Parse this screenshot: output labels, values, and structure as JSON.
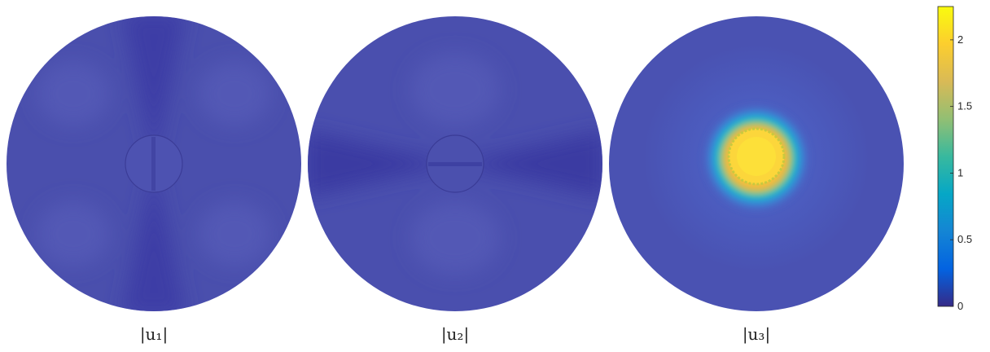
{
  "chart_data": {
    "type": "heatmap",
    "panels": [
      {
        "label": "|u₁|",
        "pattern": "vertical-lobes",
        "max_value": 0.3
      },
      {
        "label": "|u₂|",
        "pattern": "horizontal-lobes",
        "max_value": 0.35
      },
      {
        "label": "|u₃|",
        "pattern": "central-peak",
        "max_value": 2.2
      }
    ],
    "colorbar": {
      "colormap": "parula",
      "range": [
        0,
        2.25
      ],
      "ticks": [
        0,
        0.5,
        1,
        1.5,
        2
      ],
      "tick_labels": [
        "0",
        "0.5",
        "1",
        "1.5",
        "2"
      ]
    }
  }
}
